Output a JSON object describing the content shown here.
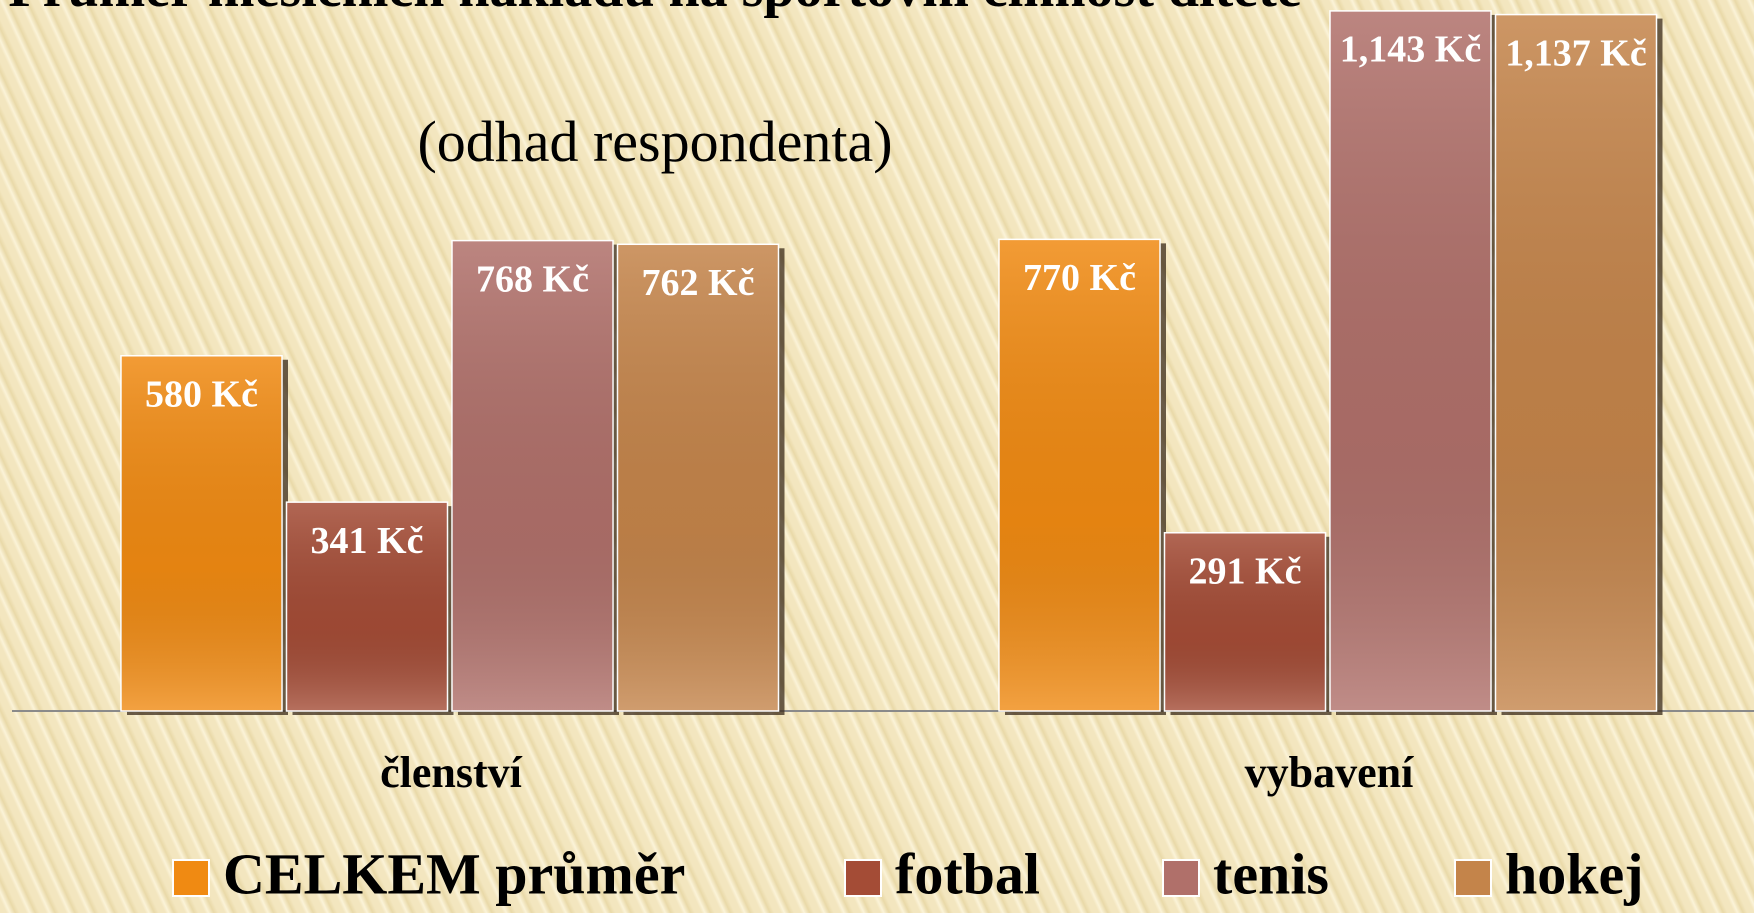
{
  "chart_data": {
    "type": "bar",
    "title": "Průměr měsíčních nákladů na sportovní činnost dítěte",
    "subtitle": "(odhad respondenta)",
    "categories": [
      "členství",
      "vybavení"
    ],
    "series": [
      {
        "name": "CELKEM průměr",
        "color": "#f08a12",
        "values": [
          580,
          770
        ],
        "value_labels": [
          "580 Kč",
          "770 Kč"
        ]
      },
      {
        "name": "fotbal",
        "color": "#a44c36",
        "values": [
          341,
          291
        ],
        "value_labels": [
          "341 Kč",
          "291 Kč"
        ]
      },
      {
        "name": "tenis",
        "color": "#b0706a",
        "values": [
          768,
          1143
        ],
        "value_labels": [
          "768 Kč",
          "1,143 Kč"
        ]
      },
      {
        "name": "hokej",
        "color": "#c4844a",
        "values": [
          762,
          1137
        ],
        "value_labels": [
          "762 Kč",
          "1,137 Kč"
        ]
      }
    ],
    "ylim": [
      0,
      1200
    ]
  }
}
